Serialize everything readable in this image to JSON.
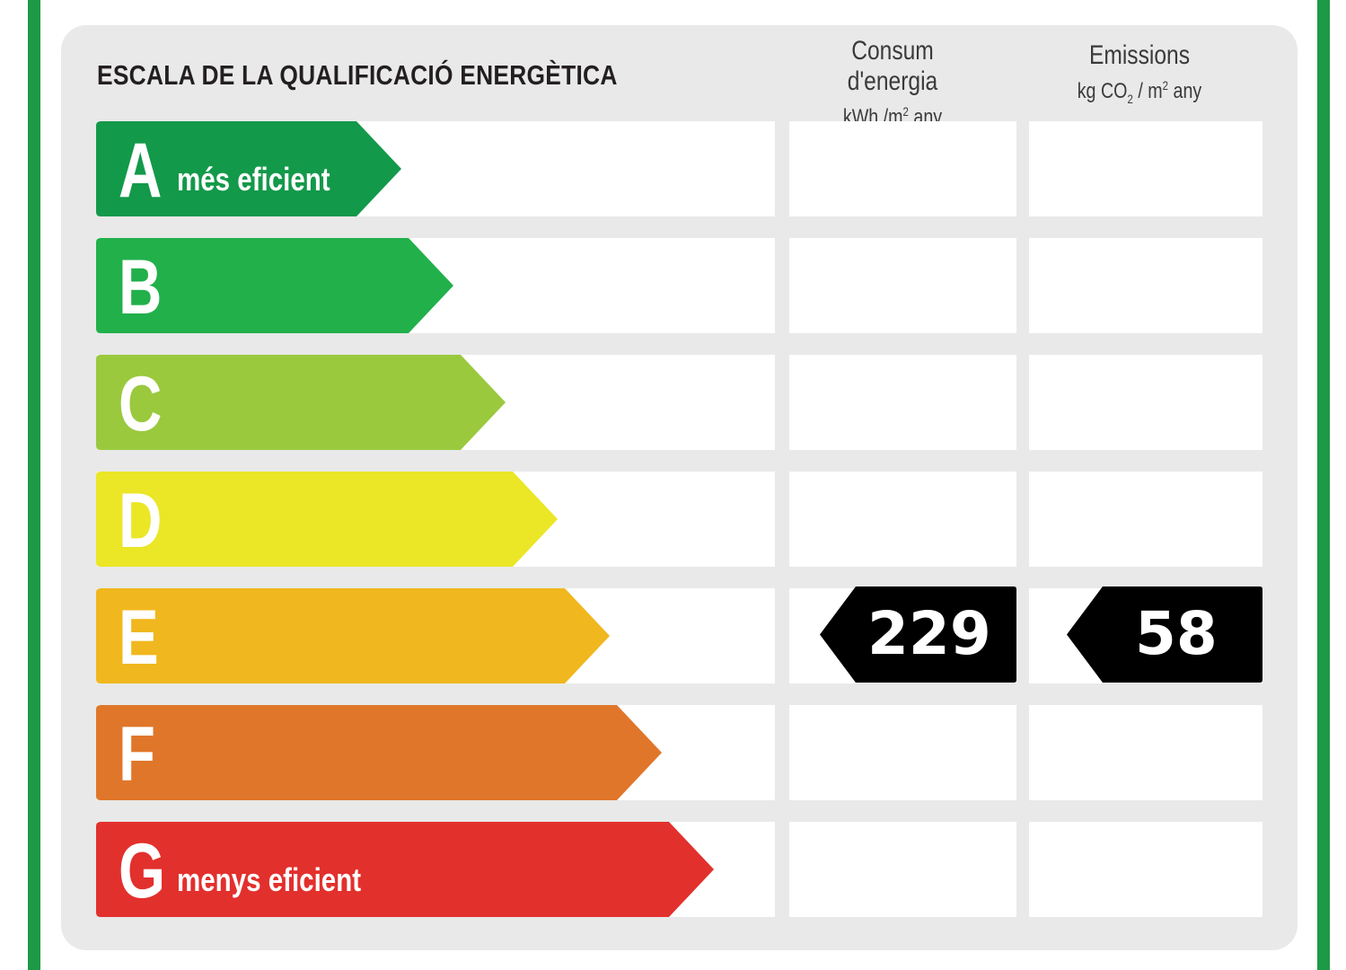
{
  "title": "ESCALA DE LA QUALIFICACIÓ ENERGÈTICA",
  "columns": {
    "energy": {
      "line1": "Consum d'energia",
      "unit_a": "kWh /m",
      "unit_sup": "2",
      "unit_b": " any"
    },
    "emissions": {
      "line1": "Emissions",
      "unit_a": "kg CO",
      "unit_sub": "2",
      "unit_c": " / m",
      "unit_sup": "2",
      "unit_b": " any"
    }
  },
  "classes": [
    {
      "letter": "A",
      "label": "més eficient",
      "color": "#13994a"
    },
    {
      "letter": "B",
      "label": "",
      "color": "#22b04b"
    },
    {
      "letter": "C",
      "label": "",
      "color": "#9ac93e"
    },
    {
      "letter": "D",
      "label": "",
      "color": "#ebe626"
    },
    {
      "letter": "E",
      "label": "",
      "color": "#f0b71e"
    },
    {
      "letter": "F",
      "label": "",
      "color": "#e0762a"
    },
    {
      "letter": "G",
      "label": "menys eficient",
      "color": "#e2302d"
    }
  ],
  "rating": {
    "class": "E",
    "energy_value": "229",
    "emissions_value": "58",
    "tag_color": "#000000"
  },
  "frame_color": "#1e9a46"
}
